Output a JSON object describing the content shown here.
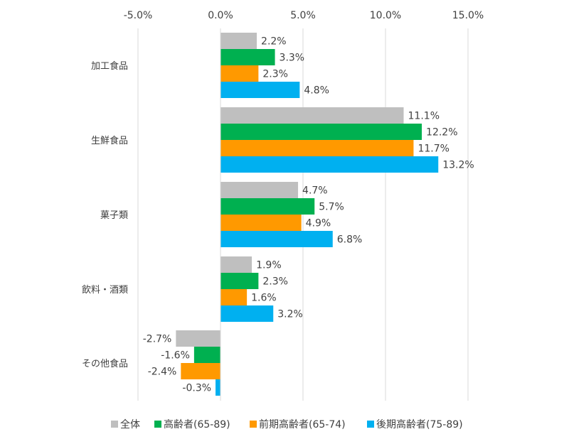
{
  "chart_data": {
    "type": "bar",
    "orientation": "horizontal",
    "categories": [
      "加工食品",
      "生鮮食品",
      "菓子類",
      "飲料・酒類",
      "その他食品"
    ],
    "series": [
      {
        "name": "全体",
        "color": "#bfbfbf",
        "values": [
          2.2,
          11.1,
          4.7,
          1.9,
          -2.7
        ],
        "labels": [
          "2.2%",
          "11.1%",
          "4.7%",
          "1.9%",
          "-2.7%"
        ]
      },
      {
        "name": "高齢者(65-89)",
        "color": "#00b050",
        "values": [
          3.3,
          12.2,
          5.7,
          2.3,
          -1.6
        ],
        "labels": [
          "3.3%",
          "12.2%",
          "5.7%",
          "2.3%",
          "-1.6%"
        ]
      },
      {
        "name": "前期高齢者(65-74)",
        "color": "#ff9900",
        "values": [
          2.3,
          11.7,
          4.9,
          1.6,
          -2.4
        ],
        "labels": [
          "2.3%",
          "11.7%",
          "4.9%",
          "1.6%",
          "-2.4%"
        ]
      },
      {
        "name": "後期高齢者(75-89)",
        "color": "#00b0f0",
        "values": [
          4.8,
          13.2,
          6.8,
          3.2,
          -0.3
        ],
        "labels": [
          "4.8%",
          "13.2%",
          "6.8%",
          "3.2%",
          "-0.3%"
        ]
      }
    ],
    "xlim": [
      -5,
      15
    ],
    "xticks": [
      -5,
      0,
      5,
      10,
      15
    ],
    "xtick_labels": [
      "-5.0%",
      "0.0%",
      "5.0%",
      "10.0%",
      "15.0%"
    ],
    "xaxis_position": "top",
    "grid": true,
    "legend_position": "bottom",
    "title": "",
    "xlabel": "",
    "ylabel": ""
  }
}
